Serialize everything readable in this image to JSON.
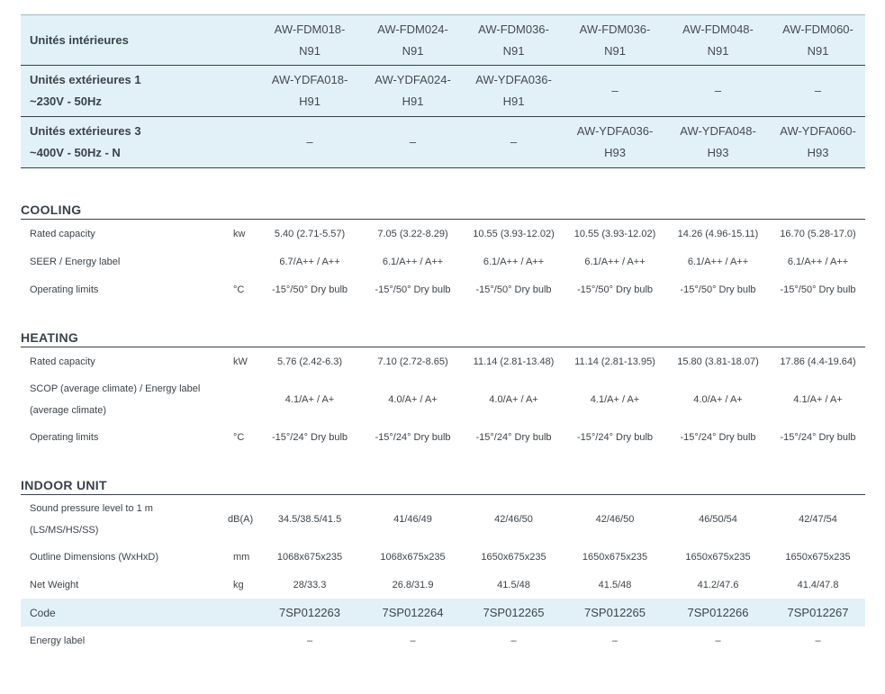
{
  "header": {
    "indoor": {
      "label": "Unités intérieures",
      "models": [
        [
          "AW-FDM018-",
          "N91"
        ],
        [
          "AW-FDM024-",
          "N91"
        ],
        [
          "AW-FDM036-",
          "N91"
        ],
        [
          "AW-FDM036-",
          "N91"
        ],
        [
          "AW-FDM048-",
          "N91"
        ],
        [
          "AW-FDM060-",
          "N91"
        ]
      ]
    },
    "outdoor1": {
      "label1": "Unités extérieures 1",
      "label2": "~230V - 50Hz",
      "models": [
        [
          "AW-YDFA018-",
          "H91"
        ],
        [
          "AW-YDFA024-",
          "H91"
        ],
        [
          "AW-YDFA036-",
          "H91"
        ],
        [
          "–",
          ""
        ],
        [
          "–",
          ""
        ],
        [
          "–",
          ""
        ]
      ]
    },
    "outdoor3": {
      "label1": "Unités extérieures 3",
      "label2": "~400V - 50Hz - N",
      "models": [
        [
          "–",
          ""
        ],
        [
          "–",
          ""
        ],
        [
          "–",
          ""
        ],
        [
          "AW-YDFA036-",
          "H93"
        ],
        [
          "AW-YDFA048-",
          "H93"
        ],
        [
          "AW-YDFA060-",
          "H93"
        ]
      ]
    }
  },
  "cooling": {
    "title": "COOLING",
    "rows": [
      {
        "label": "Rated capacity",
        "unit": "kw",
        "values": [
          "5.40 (2.71-5.57)",
          "7.05 (3.22-8.29)",
          "10.55 (3.93-12.02)",
          "10.55 (3.93-12.02)",
          "14.26 (4.96-15.11)",
          "16.70 (5.28-17.0)"
        ]
      },
      {
        "label": "SEER / Energy label",
        "unit": "",
        "values": [
          "6.7/A++ / A++",
          "6.1/A++ / A++",
          "6.1/A++ / A++",
          "6.1/A++ / A++",
          "6.1/A++ / A++",
          "6.1/A++ / A++"
        ]
      },
      {
        "label": "Operating limits",
        "unit": "°C",
        "values": [
          "-15°/50° Dry bulb",
          "-15°/50° Dry bulb",
          "-15°/50° Dry bulb",
          "-15°/50° Dry bulb",
          "-15°/50° Dry bulb",
          "-15°/50° Dry bulb"
        ]
      }
    ]
  },
  "heating": {
    "title": "HEATING",
    "rows": [
      {
        "label": "Rated capacity",
        "unit": "kW",
        "values": [
          "5.76 (2.42-6.3)",
          "7.10 (2.72-8.65)",
          "11.14 (2.81-13.48)",
          "11.14 (2.81-13.95)",
          "15.80 (3.81-18.07)",
          "17.86 (4.4-19.64)"
        ]
      },
      {
        "label1": "SCOP (average climate) / Energy label",
        "label2": "(average climate)",
        "unit": "",
        "values": [
          "4.1/A+ / A+",
          "4.0/A+ / A+",
          "4.0/A+ / A+",
          "4.1/A+ / A+",
          "4.0/A+ / A+",
          "4.1/A+ / A+"
        ]
      },
      {
        "label": "Operating limits",
        "unit": "°C",
        "values": [
          "-15°/24° Dry bulb",
          "-15°/24° Dry bulb",
          "-15°/24° Dry bulb",
          "-15°/24° Dry bulb",
          "-15°/24° Dry bulb",
          "-15°/24° Dry bulb"
        ]
      }
    ]
  },
  "indoor_unit": {
    "title": "INDOOR UNIT",
    "rows": [
      {
        "label1": "Sound pressure level to 1 m",
        "label2": "(LS/MS/HS/SS)",
        "unit": "dB(A)",
        "values": [
          "34.5/38.5/41.5",
          "41/46/49",
          "42/46/50",
          "42/46/50",
          "46/50/54",
          "42/47/54"
        ]
      },
      {
        "label": "Outline Dimensions (WxHxD)",
        "unit": "mm",
        "values": [
          "1068x675x235",
          "1068x675x235",
          "1650x675x235",
          "1650x675x235",
          "1650x675x235",
          "1650x675x235"
        ]
      },
      {
        "label": "Net Weight",
        "unit": "kg",
        "values": [
          "28/33.3",
          "26.8/31.9",
          "41.5/48",
          "41.5/48",
          "41.2/47.6",
          "41.4/47.8"
        ]
      }
    ],
    "code": {
      "label": "Code",
      "values": [
        "7SP012263",
        "7SP012264",
        "7SP012265",
        "7SP012265",
        "7SP012266",
        "7SP012267"
      ]
    },
    "energy": {
      "label": "Energy label",
      "values": [
        "–",
        "–",
        "–",
        "–",
        "–",
        "–"
      ]
    }
  }
}
